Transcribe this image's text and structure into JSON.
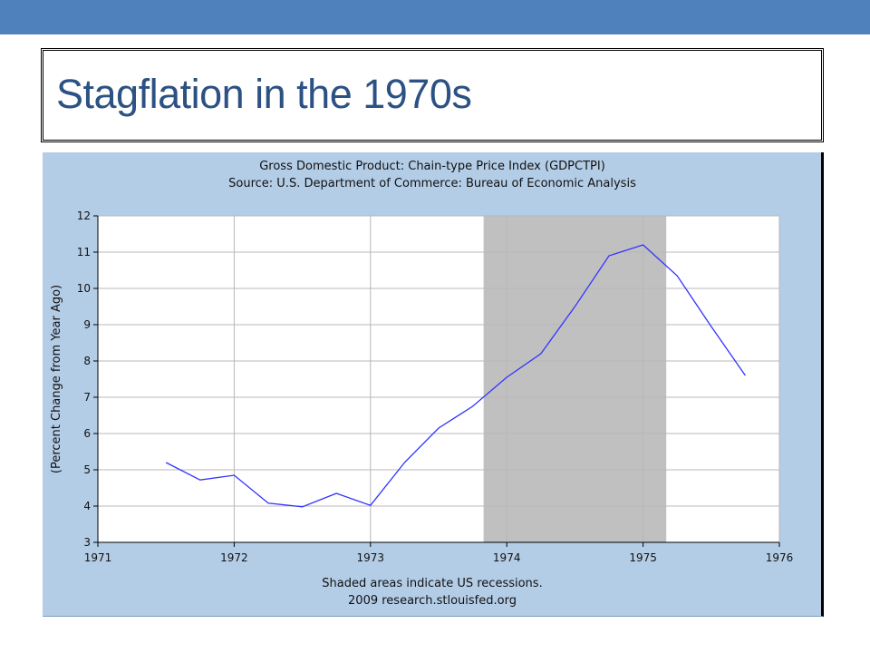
{
  "slide": {
    "title": "Stagflation in the 1970s",
    "accent_color": "#4f81bd",
    "title_color": "#2c5183"
  },
  "chart_data": {
    "type": "line",
    "title": "Gross Domestic Product: Chain-type Price Index (GDPCTPI)",
    "subtitle": "Source: U.S. Department of Commerce: Bureau of Economic Analysis",
    "xlabel": "",
    "ylabel": "(Percent Change from Year Ago)",
    "xlim": [
      1971,
      1976
    ],
    "ylim": [
      3,
      12
    ],
    "x_ticks": [
      "1971",
      "1972",
      "1973",
      "1974",
      "1975",
      "1976"
    ],
    "y_ticks": [
      "3",
      "4",
      "5",
      "6",
      "7",
      "8",
      "9",
      "10",
      "11",
      "12"
    ],
    "grid": true,
    "series": [
      {
        "color": "#3333ff",
        "x": [
          1971.5,
          1971.75,
          1972.0,
          1972.25,
          1972.5,
          1972.75,
          1973.0,
          1973.25,
          1973.5,
          1973.75,
          1974.0,
          1974.25,
          1974.5,
          1974.75,
          1975.0,
          1975.25,
          1975.5,
          1975.75
        ],
        "values": [
          5.2,
          4.72,
          4.85,
          4.08,
          3.98,
          4.35,
          4.02,
          5.2,
          6.15,
          6.75,
          7.55,
          8.2,
          9.5,
          10.9,
          11.2,
          10.35,
          8.95,
          7.6
        ]
      }
    ],
    "recessions": [
      {
        "start": 1973.83,
        "end": 1975.17
      }
    ],
    "recession_color": "#c0c0c0",
    "notes": [
      "Shaded areas indicate US recessions.",
      "2009 research.stlouisfed.org"
    ]
  }
}
